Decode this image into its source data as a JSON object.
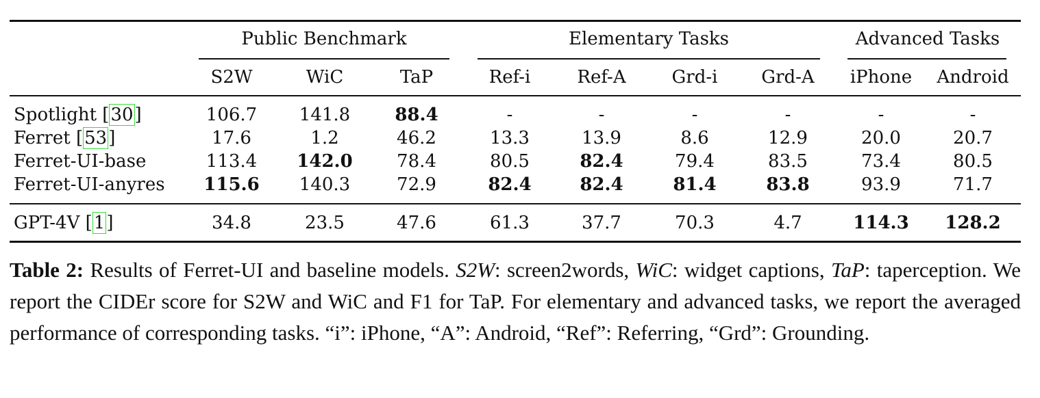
{
  "table": {
    "groups": [
      {
        "label": "Public Benchmark"
      },
      {
        "label": "Elementary Tasks"
      },
      {
        "label": "Advanced Tasks"
      }
    ],
    "columns": [
      "S2W",
      "WiC",
      "TaP",
      "Ref-i",
      "Ref-A",
      "Grd-i",
      "Grd-A",
      "iPhone",
      "Android"
    ],
    "rows": [
      {
        "name": "Spotlight",
        "cite": "30",
        "values": [
          "106.7",
          "141.8",
          "88.4",
          "-",
          "-",
          "-",
          "-",
          "-",
          "-"
        ],
        "bold": [
          false,
          false,
          true,
          false,
          false,
          false,
          false,
          false,
          false
        ]
      },
      {
        "name": "Ferret",
        "cite": "53",
        "values": [
          "17.6",
          "1.2",
          "46.2",
          "13.3",
          "13.9",
          "8.6",
          "12.9",
          "20.0",
          "20.7"
        ],
        "bold": [
          false,
          false,
          false,
          false,
          false,
          false,
          false,
          false,
          false
        ]
      },
      {
        "name": "Ferret-UI-base",
        "cite": "",
        "values": [
          "113.4",
          "142.0",
          "78.4",
          "80.5",
          "82.4",
          "79.4",
          "83.5",
          "73.4",
          "80.5"
        ],
        "bold": [
          false,
          true,
          false,
          false,
          true,
          false,
          false,
          false,
          false
        ]
      },
      {
        "name": "Ferret-UI-anyres",
        "cite": "",
        "values": [
          "115.6",
          "140.3",
          "72.9",
          "82.4",
          "82.4",
          "81.4",
          "83.8",
          "93.9",
          "71.7"
        ],
        "bold": [
          true,
          false,
          false,
          true,
          true,
          true,
          true,
          false,
          false
        ]
      },
      {
        "name": "GPT-4V",
        "cite": "1",
        "values": [
          "34.8",
          "23.5",
          "47.6",
          "61.3",
          "37.7",
          "70.3",
          "4.7",
          "114.3",
          "128.2"
        ],
        "bold": [
          false,
          false,
          false,
          false,
          false,
          false,
          false,
          true,
          true
        ]
      }
    ]
  },
  "caption": {
    "label": "Table 2:",
    "t1": " Results of Ferret-UI and baseline models. ",
    "s2w": "S2W",
    "t2": ": screen2words, ",
    "wic": "WiC",
    "t3": ": widget captions, ",
    "tap": "TaP",
    "t4": ": taperception. We report the CIDEr score for S2W and WiC and F1 for TaP. For elementary and advanced tasks, we report the averaged performance of corresponding tasks. “i”: iPhone, “A”: Android, “Ref”: Referring, “Grd”: Grounding."
  }
}
